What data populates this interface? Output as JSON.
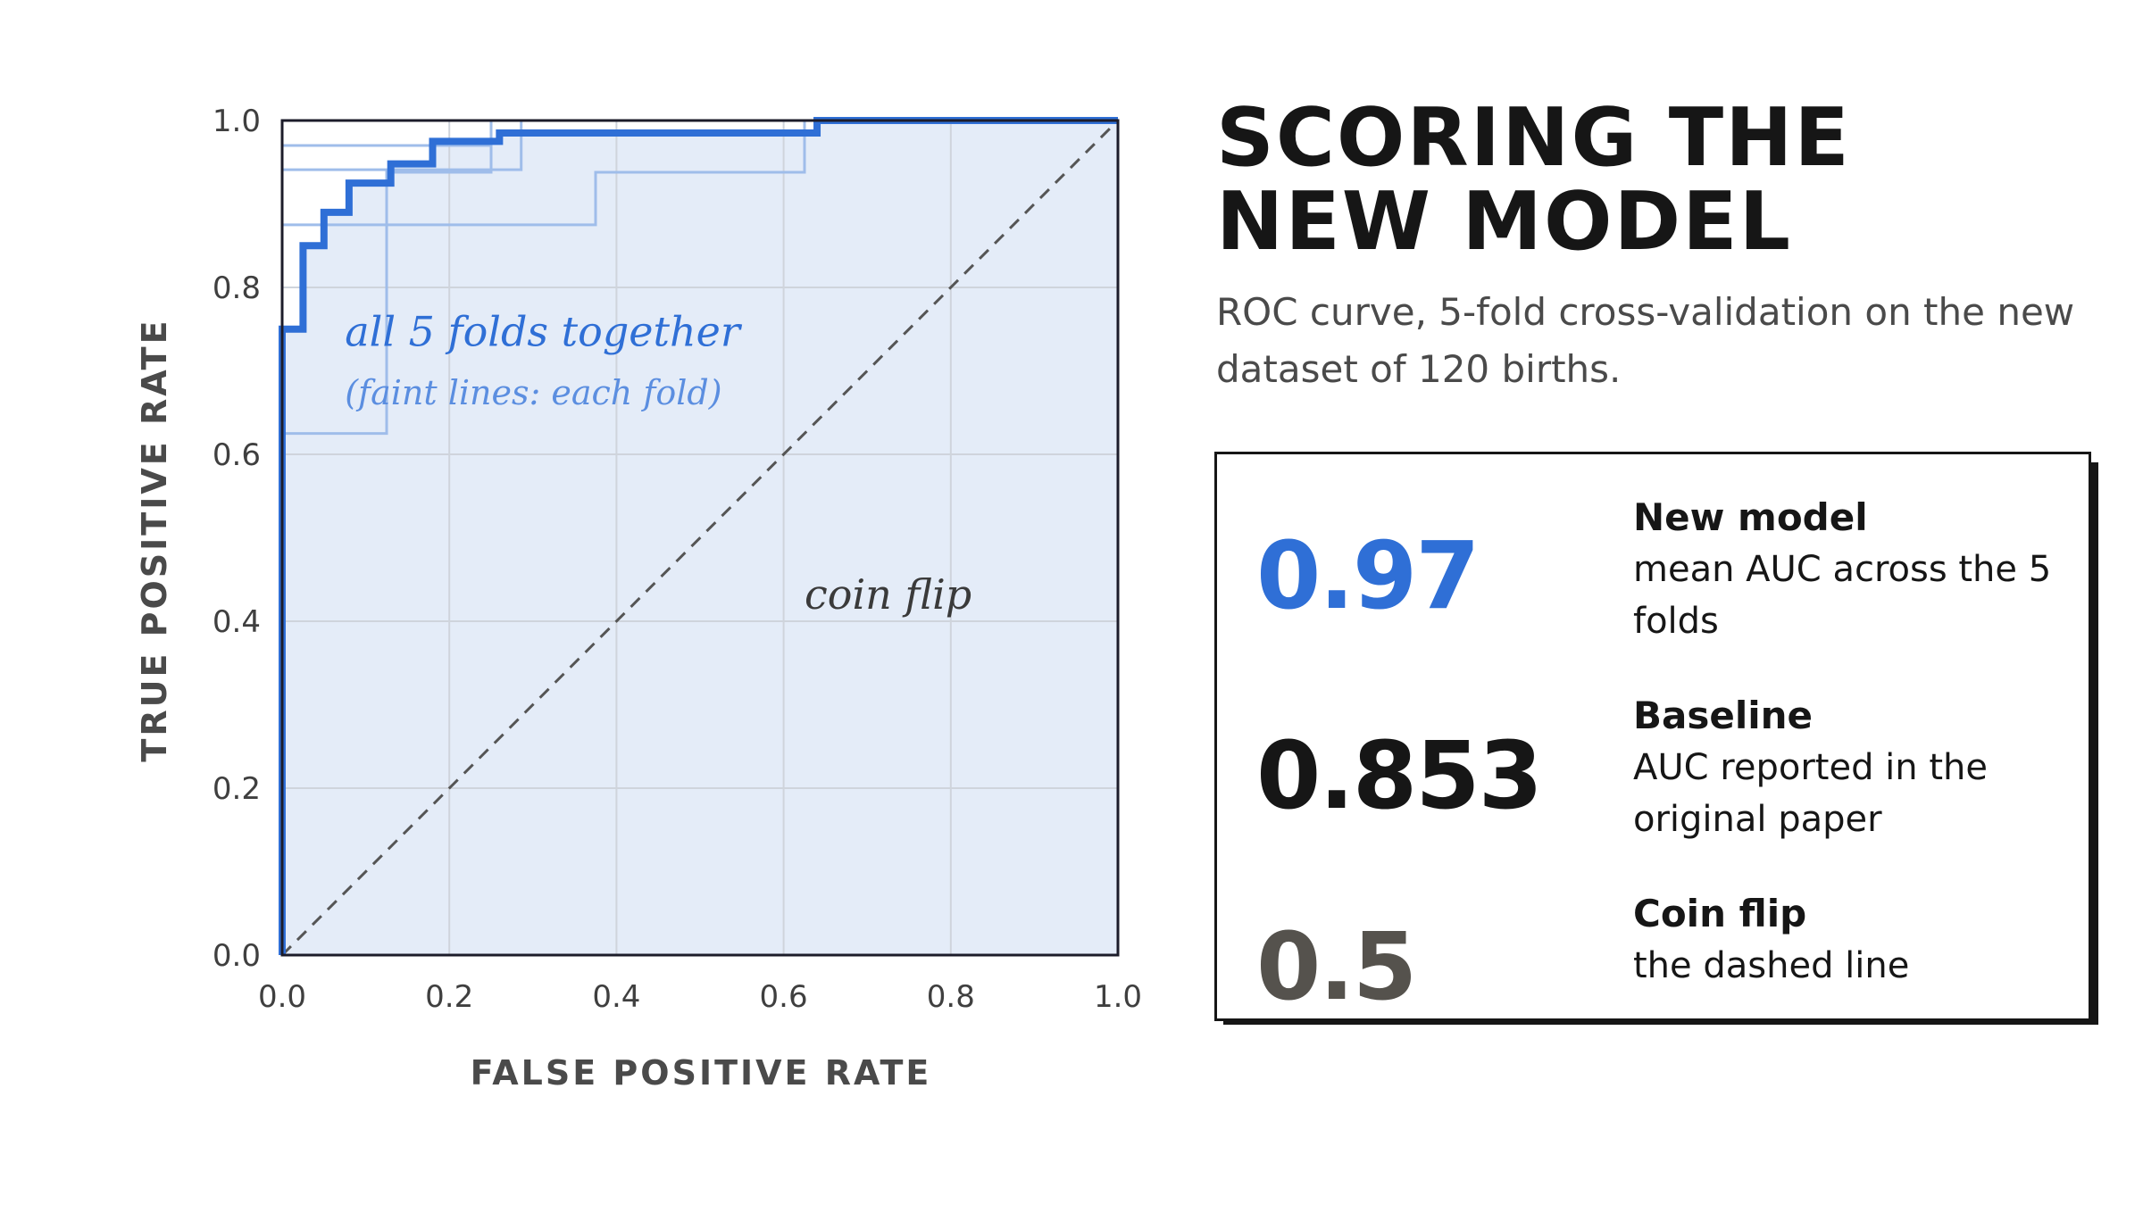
{
  "chart_data": {
    "type": "line",
    "xlabel": "FALSE POSITIVE RATE",
    "ylabel": "TRUE POSITIVE RATE",
    "xlim": [
      0,
      1
    ],
    "ylim": [
      0,
      1
    ],
    "x_ticks": [
      "0.0",
      "0.2",
      "0.4",
      "0.6",
      "0.8",
      "1.0"
    ],
    "y_ticks": [
      "0.0",
      "0.2",
      "0.4",
      "0.6",
      "0.8",
      "1.0"
    ],
    "grid": true,
    "series": [
      {
        "x": [
          0,
          0,
          0.025,
          0.025,
          0.05,
          0.05,
          0.08,
          0.08,
          0.13,
          0.13,
          0.18,
          0.18,
          0.26,
          0.26,
          0.64,
          0.64,
          1.0
        ],
        "y": [
          0,
          0.75,
          0.75,
          0.85,
          0.85,
          0.89,
          0.89,
          0.925,
          0.925,
          0.948,
          0.948,
          0.975,
          0.975,
          0.985,
          0.985,
          1.0,
          1.0
        ],
        "color": "#2f6fd6"
      },
      {
        "x": [
          0,
          0,
          0.125,
          0.125,
          0.25,
          0.25,
          1.0
        ],
        "y": [
          0,
          0.625,
          0.625,
          0.938,
          0.938,
          1.0,
          1.0
        ],
        "color": "#9fbdea"
      },
      {
        "x": [
          0,
          0,
          0.375,
          0.375,
          0.625,
          0.625,
          1.0
        ],
        "y": [
          0,
          0.875,
          0.875,
          0.938,
          0.938,
          1.0,
          1.0
        ],
        "color": "#9fbdea"
      },
      {
        "x": [
          0,
          0,
          0.286,
          0.286,
          1.0
        ],
        "y": [
          0,
          0.941,
          0.941,
          1.0,
          1.0
        ],
        "color": "#9fbdea"
      },
      {
        "x": [
          0,
          0,
          0.25,
          0.25,
          1.0
        ],
        "y": [
          0,
          0.97,
          0.97,
          1.0,
          1.0
        ],
        "color": "#9fbdea"
      },
      {
        "x": [
          0,
          0,
          1.0
        ],
        "y": [
          0,
          1.0,
          1.0
        ],
        "color": "#9fbdea"
      }
    ],
    "reference_line": {
      "x": [
        0,
        1
      ],
      "y": [
        0,
        1
      ],
      "style": "dashed",
      "color": "#555555"
    },
    "annotations": [
      {
        "text": "all 5 folds together",
        "x": 0.075,
        "y": 0.73,
        "color": "#2f6fd6"
      },
      {
        "text": "(faint lines: each fold)",
        "x": 0.075,
        "y": 0.66,
        "color": "#5b8ee0"
      },
      {
        "text": "coin flip",
        "x": 0.625,
        "y": 0.415,
        "color": "#3a3a3a"
      }
    ],
    "fill_color": "#e4ecf8"
  },
  "header": {
    "title_line1": "SCORING THE",
    "title_line2": "NEW MODEL",
    "subtitle": "ROC curve, 5-fold cross-validation on the new dataset of 120 births."
  },
  "stats": [
    {
      "value": "0.97",
      "name": "New model",
      "desc": "mean AUC across the 5 folds",
      "color": "#2f6fd6"
    },
    {
      "value": "0.853",
      "name": "Baseline",
      "desc": "AUC reported in the original paper",
      "color": "#161616"
    },
    {
      "value": "0.5",
      "name": "Coin flip",
      "desc": "the dashed line",
      "color": "#55524d"
    }
  ]
}
